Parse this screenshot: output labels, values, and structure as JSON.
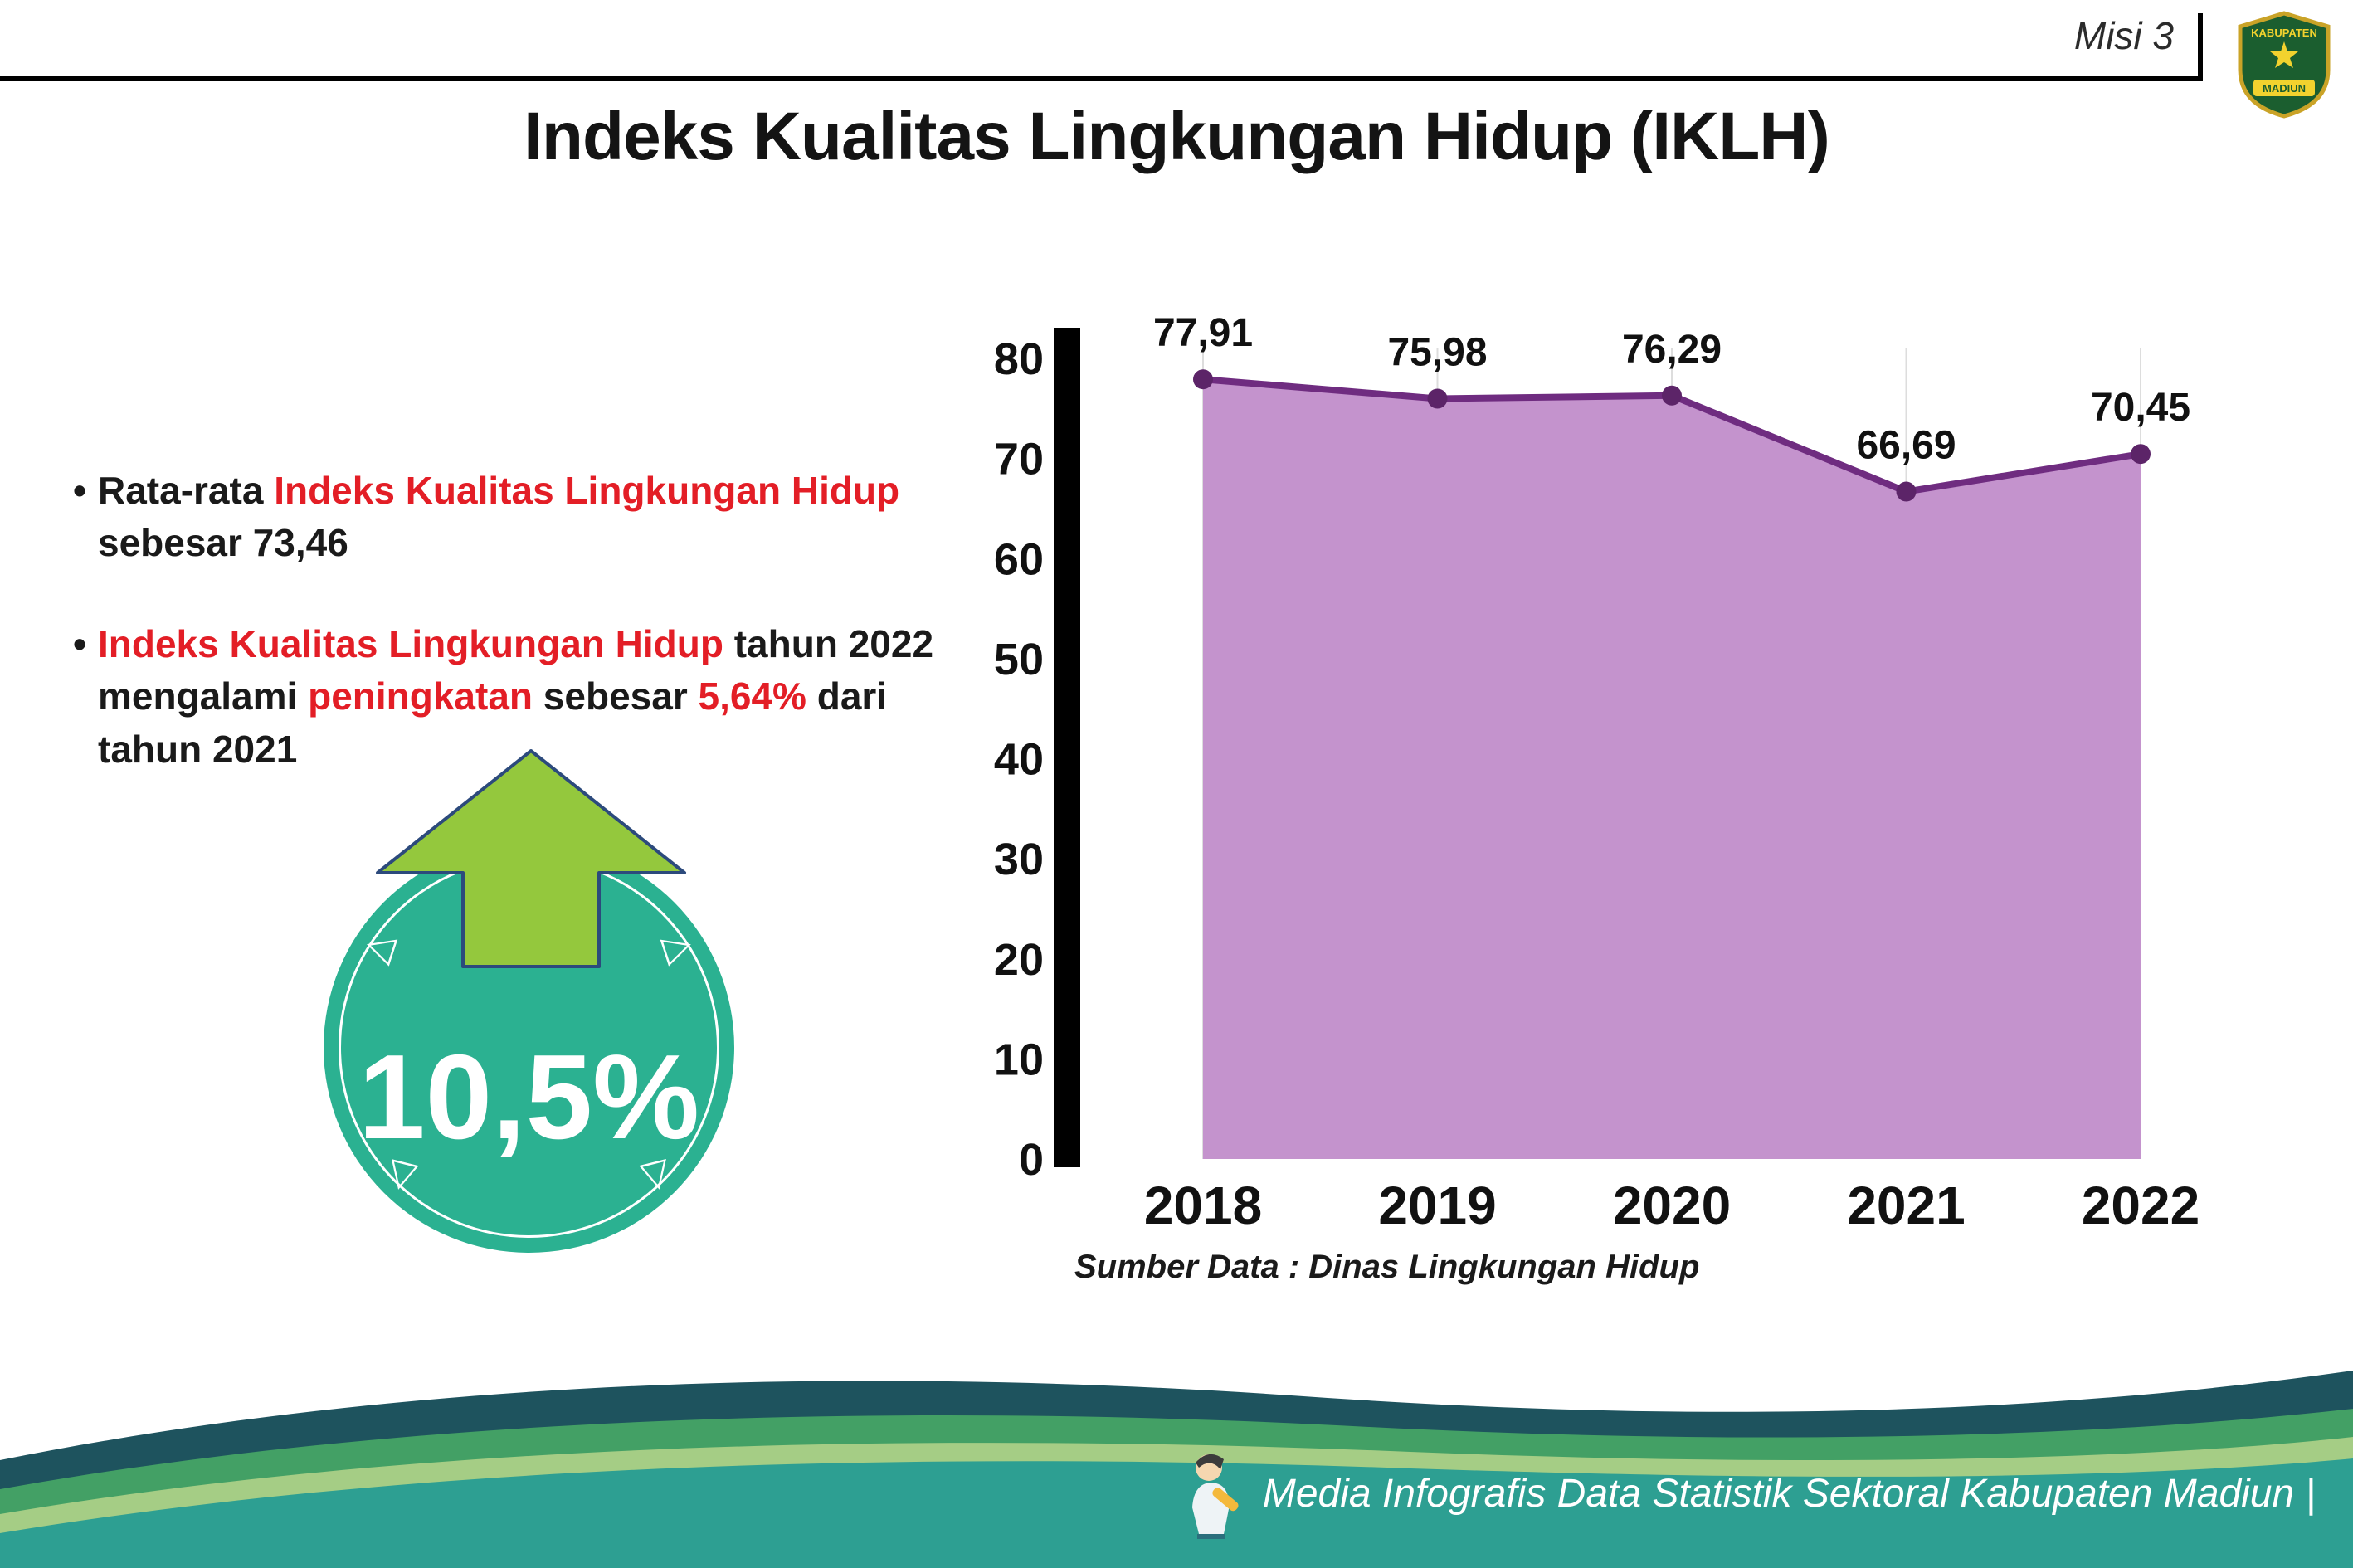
{
  "header": {
    "misi": "Misi 3",
    "title": "Indeks Kualitas Lingkungan Hidup (IKLH)"
  },
  "logo": {
    "top_text": "KABUPATEN",
    "bottom_text": "MADIUN"
  },
  "bullets": {
    "bullet_char": "•",
    "b1": {
      "t1": "Rata-rata ",
      "h1": "Indeks Kualitas Lingkungan Hidup",
      "t2": " sebesar 73,46"
    },
    "b2": {
      "h1": "Indeks Kualitas Lingkungan Hidup",
      "t1": " tahun 2022 mengalami ",
      "h2": "peningkatan",
      "t2": " sebesar ",
      "h3": "5,64%",
      "t3": " dari tahun 2021"
    }
  },
  "badge": {
    "value": "10,5%",
    "tri_left": "◁",
    "tri_right": "▷",
    "tri_down": "▽"
  },
  "chart_data": {
    "type": "area",
    "title": "Indeks Kualitas Lingkungan Hidup (IKLH)",
    "categories": [
      "2018",
      "2019",
      "2020",
      "2021",
      "2022"
    ],
    "values": [
      77.91,
      75.98,
      76.29,
      66.69,
      70.45
    ],
    "value_labels": [
      "77,91",
      "75,98",
      "76,29",
      "66,69",
      "70,45"
    ],
    "ylim": [
      0,
      80
    ],
    "yticks": [
      0,
      10,
      20,
      30,
      40,
      50,
      60,
      70,
      80
    ],
    "grid": "vertical-only",
    "legend": "none",
    "source": "Sumber Data : Dinas Lingkungan Hidup",
    "colors": {
      "area": "#c493cd",
      "line": "#6f2c80",
      "marker": "#5c2468",
      "axis": "#000000",
      "grid": "#dddddd"
    }
  },
  "footer": {
    "text": "Media Infografis Data Statistik Sektoral Kabupaten Madiun |"
  }
}
